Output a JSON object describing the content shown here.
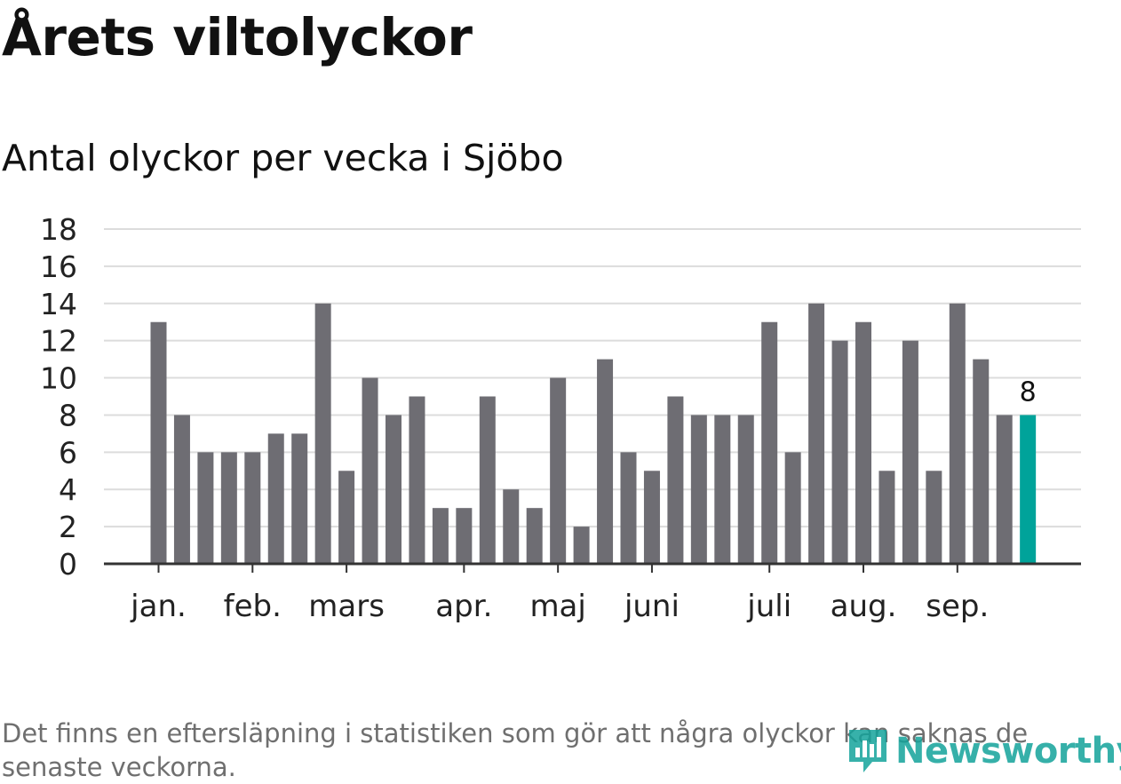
{
  "chart_data": {
    "type": "bar",
    "title": "Årets viltolyckor",
    "subtitle": "Antal olyckor per vecka i Sjöbo",
    "xlabel": "",
    "ylabel": "",
    "ylim": [
      0,
      18
    ],
    "yticks": [
      0,
      2,
      4,
      6,
      8,
      10,
      12,
      14,
      16,
      18
    ],
    "grid": true,
    "values": [
      13,
      8,
      6,
      6,
      6,
      7,
      7,
      14,
      5,
      10,
      8,
      9,
      3,
      3,
      9,
      4,
      3,
      10,
      2,
      11,
      6,
      5,
      9,
      8,
      8,
      8,
      13,
      6,
      14,
      12,
      13,
      5,
      12,
      5,
      14,
      11,
      8,
      8
    ],
    "month_ticks": [
      {
        "label": "jan.",
        "week_index": 0
      },
      {
        "label": "feb.",
        "week_index": 4
      },
      {
        "label": "mars",
        "week_index": 8
      },
      {
        "label": "apr.",
        "week_index": 13
      },
      {
        "label": "maj",
        "week_index": 17
      },
      {
        "label": "juni",
        "week_index": 21
      },
      {
        "label": "juli",
        "week_index": 26
      },
      {
        "label": "aug.",
        "week_index": 30
      },
      {
        "label": "sep.",
        "week_index": 34
      }
    ],
    "highlight_index": 37,
    "highlight_label": "8",
    "colors": {
      "bar": "#6e6d73",
      "highlight": "#00a39a",
      "grid": "#dcdcdc",
      "axis": "#333333"
    }
  },
  "footnote": "Det finns en eftersläpning i statistiken som gör att några olyckor kan saknas de senaste veckorna.",
  "logo": {
    "text": "Newsworthy",
    "icon": "newsworthy-logo-icon"
  }
}
